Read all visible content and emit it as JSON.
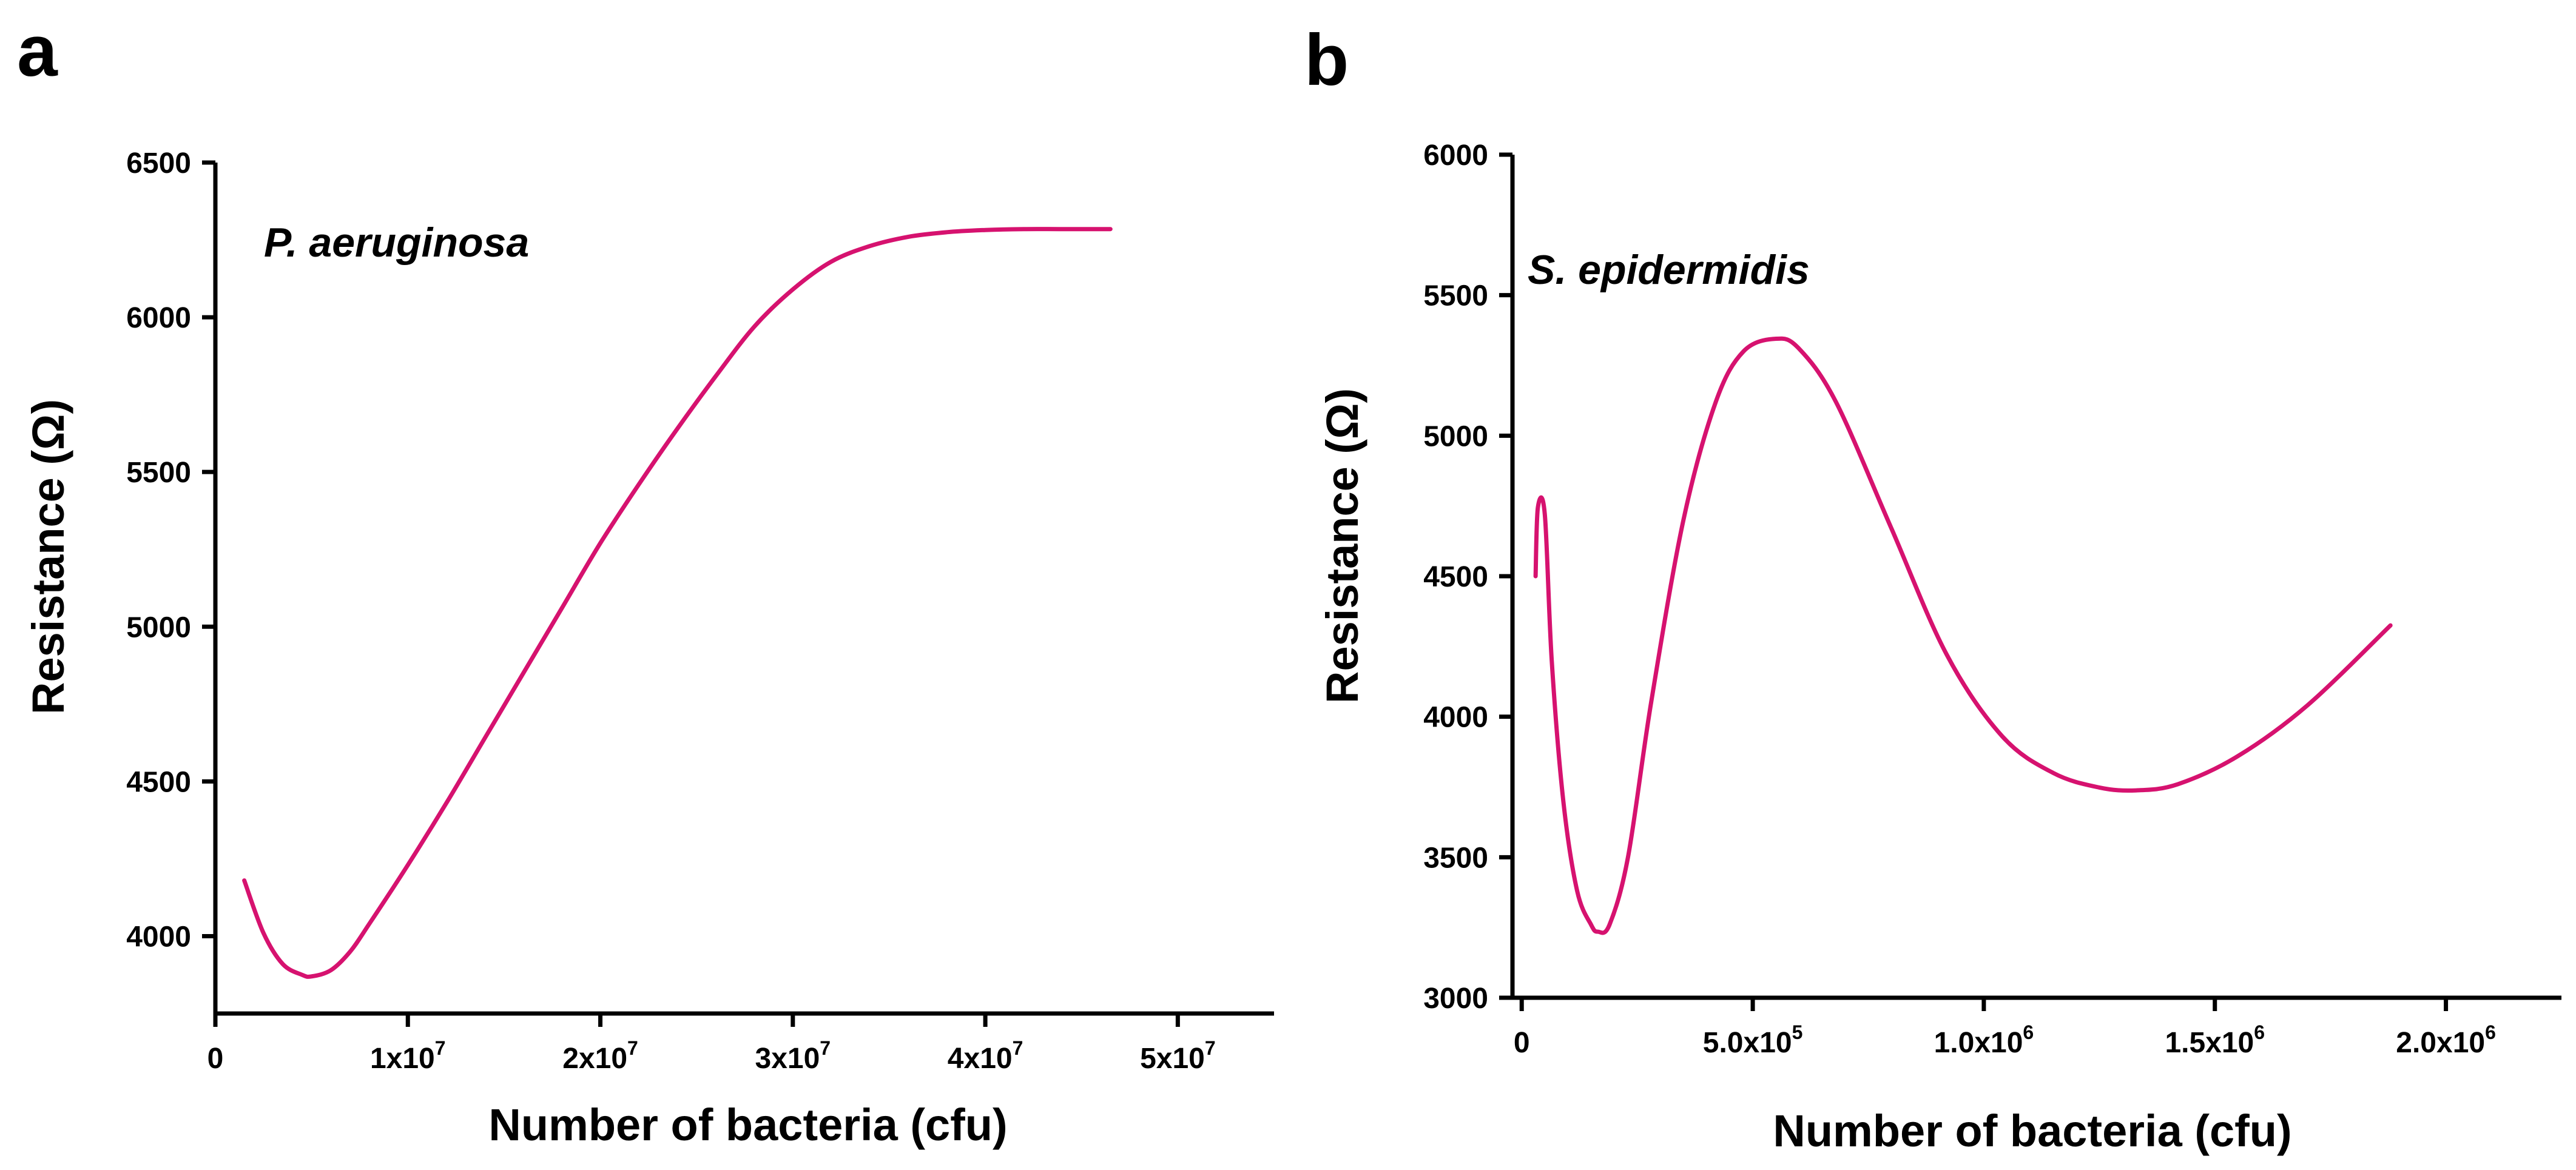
{
  "chart_data": [
    {
      "panel": "a",
      "type": "line",
      "annotation": "P. aeruginosa",
      "xlabel": "Number of bacteria (cfu)",
      "ylabel": "Resistance (Ω)",
      "xlim": [
        0,
        55000000
      ],
      "ylim": [
        3750,
        6500
      ],
      "x_ticks": [
        {
          "value": 0,
          "base": "0",
          "exp": ""
        },
        {
          "value": 10000000,
          "base": "1x10",
          "exp": "7"
        },
        {
          "value": 20000000,
          "base": "2x10",
          "exp": "7"
        },
        {
          "value": 30000000,
          "base": "3x10",
          "exp": "7"
        },
        {
          "value": 40000000,
          "base": "4x10",
          "exp": "7"
        },
        {
          "value": 50000000,
          "base": "5x10",
          "exp": "7"
        }
      ],
      "y_ticks": [
        4000,
        4500,
        5000,
        5500,
        6000,
        6500
      ],
      "series": [
        {
          "name": "P. aeruginosa",
          "color": "#d6126f",
          "x": [
            1500000,
            2500000,
            3500000,
            4500000,
            5000000,
            6000000,
            7000000,
            8000000,
            10000000,
            12000000,
            14000000,
            16000000,
            18000000,
            20000000,
            22000000,
            24000000,
            26000000,
            28000000,
            30000000,
            32000000,
            34000000,
            36000000,
            38000000,
            40000000,
            42000000,
            44000000,
            46500000
          ],
          "y": [
            4180,
            4010,
            3910,
            3875,
            3870,
            3890,
            3950,
            4040,
            4230,
            4430,
            4640,
            4850,
            5060,
            5270,
            5460,
            5640,
            5810,
            5970,
            6090,
            6180,
            6230,
            6260,
            6275,
            6282,
            6285,
            6285,
            6285
          ]
        }
      ]
    },
    {
      "panel": "b",
      "type": "line",
      "annotation": "S. epidermidis",
      "xlabel": "Number of bacteria (cfu)",
      "ylabel": "Resistance (Ω)",
      "xlim": [
        -20000,
        2250000
      ],
      "ylim": [
        3000,
        6000
      ],
      "x_ticks": [
        {
          "value": 0,
          "base": "0",
          "exp": ""
        },
        {
          "value": 500000,
          "base": "5.0x10",
          "exp": "5"
        },
        {
          "value": 1000000,
          "base": "1.0x10",
          "exp": "6"
        },
        {
          "value": 1500000,
          "base": "1.5x10",
          "exp": "6"
        },
        {
          "value": 2000000,
          "base": "2.0x10",
          "exp": "6"
        }
      ],
      "y_ticks": [
        3000,
        3500,
        4000,
        4500,
        5000,
        5500,
        6000
      ],
      "series": [
        {
          "name": "S. epidermidis",
          "color": "#d6126f",
          "x": [
            30000,
            35000,
            50000,
            65000,
            90000,
            120000,
            150000,
            165000,
            190000,
            230000,
            280000,
            350000,
            420000,
            480000,
            550000,
            600000,
            680000,
            800000,
            920000,
            1040000,
            1150000,
            1250000,
            1330000,
            1420000,
            1550000,
            1700000,
            1880000
          ],
          "y": [
            4500,
            4745,
            4720,
            4200,
            3700,
            3380,
            3260,
            3235,
            3260,
            3500,
            4050,
            4700,
            5120,
            5300,
            5345,
            5310,
            5120,
            4670,
            4220,
            3930,
            3800,
            3748,
            3738,
            3760,
            3860,
            4040,
            4325
          ]
        }
      ]
    }
  ]
}
